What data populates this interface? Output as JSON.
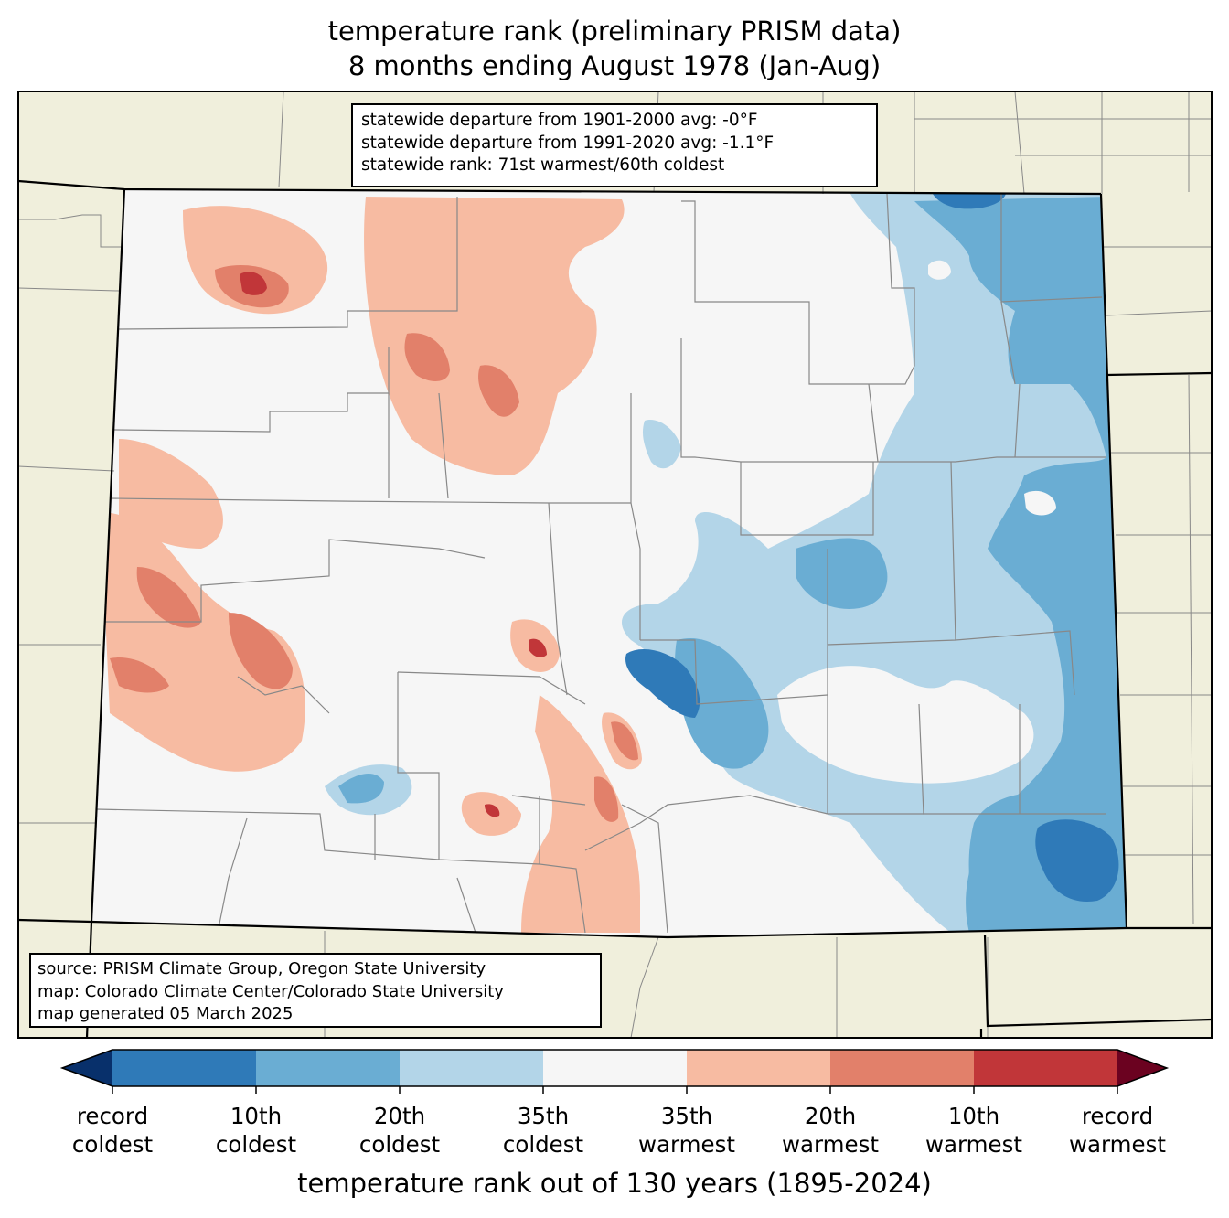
{
  "title": {
    "line1": "temperature rank (preliminary PRISM data)",
    "line2": "8 months ending August 1978 (Jan-Aug)"
  },
  "stats": {
    "line1": "statewide departure from 1901-2000 avg: -0°F",
    "line2": "statewide departure from 1991-2020 avg: -1.1°F",
    "line3": "statewide rank: 71st warmest/60th coldest"
  },
  "source": {
    "line1": "source: PRISM Climate Group, Oregon State University",
    "line2": "map: Colorado Climate Center/Colorado State University",
    "line3": "map generated 05 March 2025"
  },
  "colorbar": {
    "title": "temperature rank out of 130 years (1895-2024)",
    "labels": [
      {
        "l1": "record",
        "l2": "coldest"
      },
      {
        "l1": "10th",
        "l2": "coldest"
      },
      {
        "l1": "20th",
        "l2": "coldest"
      },
      {
        "l1": "35th",
        "l2": "coldest"
      },
      {
        "l1": "35th",
        "l2": "warmest"
      },
      {
        "l1": "20th",
        "l2": "warmest"
      },
      {
        "l1": "10th",
        "l2": "warmest"
      },
      {
        "l1": "record",
        "l2": "warmest"
      }
    ],
    "colors": [
      "#08306b",
      "#2f7ab8",
      "#6aadd3",
      "#b3d5e8",
      "#f6f6f6",
      "#f7bba2",
      "#e2806a",
      "#c13639",
      "#6b0220"
    ]
  },
  "map_colors": {
    "land": "#f0efdc",
    "state_border": "#000000",
    "county_border": "#888888"
  }
}
